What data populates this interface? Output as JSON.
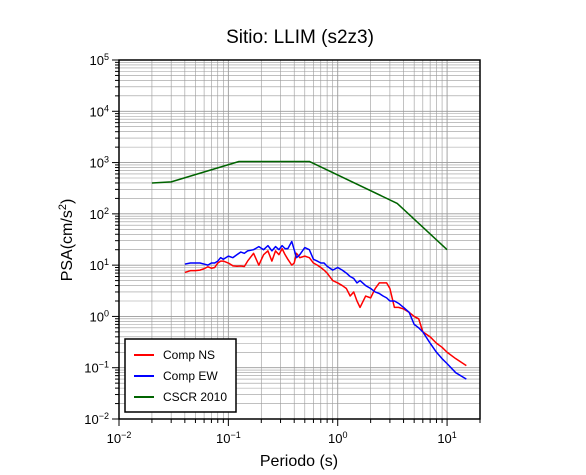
{
  "chart_data": {
    "type": "line",
    "title": "Sitio: LLIM (s2z3)",
    "xlabel": "Periodo (s)",
    "ylabel_base": "PSA(cm/s",
    "ylabel_sup": "2",
    "ylabel_end": ")",
    "x_scale": "log",
    "y_scale": "log",
    "xlim": [
      0.01,
      20
    ],
    "ylim": [
      0.01,
      100000
    ],
    "x_ticks": [
      {
        "value": 0.01,
        "base": "10",
        "exp": "−2"
      },
      {
        "value": 0.1,
        "base": "10",
        "exp": "−1"
      },
      {
        "value": 1,
        "base": "10",
        "exp": "0"
      },
      {
        "value": 10,
        "base": "10",
        "exp": "1"
      }
    ],
    "y_ticks": [
      {
        "value": 0.01,
        "base": "10",
        "exp": "−2"
      },
      {
        "value": 0.1,
        "base": "10",
        "exp": "−1"
      },
      {
        "value": 1,
        "base": "10",
        "exp": "0"
      },
      {
        "value": 10,
        "base": "10",
        "exp": "1"
      },
      {
        "value": 100,
        "base": "10",
        "exp": "2"
      },
      {
        "value": 1000,
        "base": "10",
        "exp": "3"
      },
      {
        "value": 10000,
        "base": "10",
        "exp": "4"
      },
      {
        "value": 100000,
        "base": "10",
        "exp": "5"
      }
    ],
    "grid": true,
    "legend_position": "bottom-left",
    "series": [
      {
        "name": "Comp NS",
        "color": "#ff0000",
        "x": [
          0.04,
          0.045,
          0.05,
          0.055,
          0.06,
          0.065,
          0.07,
          0.075,
          0.08,
          0.085,
          0.09,
          0.1,
          0.11,
          0.12,
          0.13,
          0.14,
          0.15,
          0.17,
          0.19,
          0.21,
          0.23,
          0.25,
          0.27,
          0.29,
          0.31,
          0.33,
          0.35,
          0.38,
          0.4,
          0.42,
          0.45,
          0.5,
          0.55,
          0.6,
          0.65,
          0.7,
          0.75,
          0.8,
          0.9,
          1.0,
          1.1,
          1.2,
          1.3,
          1.4,
          1.5,
          1.6,
          1.8,
          2.0,
          2.2,
          2.4,
          2.6,
          2.8,
          3.0,
          3.3,
          3.6,
          4.0,
          4.5,
          5.0,
          5.5,
          6.0,
          7.0,
          8.0,
          9.0,
          10.0,
          12.0,
          15.0
        ],
        "y": [
          7.2,
          7.8,
          7.8,
          8.0,
          8.5,
          9.3,
          8.7,
          9.0,
          11.0,
          12.0,
          12.0,
          11.0,
          9.7,
          9.5,
          9.6,
          9.4,
          12.0,
          17.0,
          10.0,
          16.0,
          19.0,
          12.0,
          19.0,
          16.0,
          21.0,
          16.0,
          13.0,
          10.0,
          11.0,
          17.0,
          14.0,
          15.0,
          14.0,
          11.0,
          10.0,
          9.0,
          8.0,
          7.0,
          5.0,
          4.5,
          4.0,
          3.5,
          2.5,
          3.0,
          2.0,
          1.5,
          2.5,
          2.3,
          3.5,
          4.5,
          4.5,
          4.5,
          3.5,
          1.5,
          1.5,
          1.4,
          1.2,
          1.0,
          0.9,
          0.5,
          0.4,
          0.3,
          0.25,
          0.2,
          0.15,
          0.11
        ]
      },
      {
        "name": "Comp EW",
        "color": "#0000ff",
        "x": [
          0.04,
          0.045,
          0.05,
          0.055,
          0.06,
          0.065,
          0.07,
          0.075,
          0.08,
          0.085,
          0.09,
          0.1,
          0.11,
          0.12,
          0.13,
          0.14,
          0.15,
          0.17,
          0.19,
          0.21,
          0.23,
          0.25,
          0.27,
          0.29,
          0.31,
          0.33,
          0.35,
          0.38,
          0.4,
          0.42,
          0.45,
          0.5,
          0.55,
          0.6,
          0.65,
          0.7,
          0.75,
          0.8,
          0.9,
          1.0,
          1.1,
          1.2,
          1.3,
          1.4,
          1.5,
          1.6,
          1.8,
          2.0,
          2.2,
          2.4,
          2.6,
          2.8,
          3.0,
          3.3,
          3.6,
          4.0,
          4.5,
          5.0,
          5.5,
          6.0,
          7.0,
          8.0,
          9.0,
          10.0,
          12.0,
          15.0
        ],
        "y": [
          10.5,
          11.0,
          11.0,
          11.0,
          10.5,
          10.0,
          11.0,
          11.0,
          12.0,
          14.0,
          13.0,
          15.0,
          14.0,
          16.0,
          18.0,
          17.0,
          19.0,
          20.0,
          23.0,
          20.0,
          24.0,
          19.0,
          23.0,
          20.0,
          24.0,
          21.0,
          21.0,
          29.0,
          20.0,
          14.0,
          16.0,
          22.0,
          20.0,
          13.0,
          12.0,
          11.0,
          11.0,
          9.5,
          8.0,
          9.0,
          8.0,
          7.0,
          6.0,
          5.5,
          4.5,
          5.0,
          4.0,
          3.5,
          3.0,
          2.8,
          2.5,
          2.3,
          2.0,
          2.0,
          1.8,
          1.5,
          1.2,
          0.7,
          0.6,
          0.5,
          0.3,
          0.2,
          0.15,
          0.12,
          0.08,
          0.06
        ]
      },
      {
        "name": "CSCR 2010",
        "color": "#006400",
        "x": [
          0.02,
          0.03,
          0.125,
          0.55,
          3.5,
          10.0
        ],
        "y": [
          400,
          420,
          1050,
          1050,
          160,
          20
        ]
      }
    ]
  }
}
